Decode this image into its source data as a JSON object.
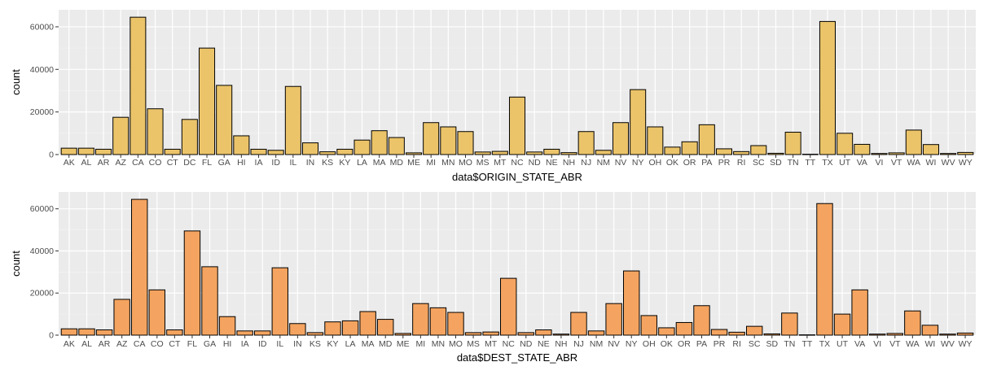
{
  "chart_data": [
    {
      "type": "bar",
      "xlabel": "data$ORIGIN_STATE_ABR",
      "ylabel": "count",
      "ylim": [
        0,
        68000
      ],
      "yticks": [
        0,
        20000,
        40000,
        60000
      ],
      "grid": true,
      "fill_color": "#EBC46A",
      "categories": [
        "AK",
        "AL",
        "AR",
        "AZ",
        "CA",
        "CO",
        "CT",
        "DC",
        "FL",
        "GA",
        "HI",
        "IA",
        "ID",
        "IL",
        "IN",
        "KS",
        "KY",
        "LA",
        "MA",
        "MD",
        "ME",
        "MI",
        "MN",
        "MO",
        "MS",
        "MT",
        "NC",
        "ND",
        "NE",
        "NH",
        "NJ",
        "NM",
        "NV",
        "NY",
        "OH",
        "OK",
        "OR",
        "PA",
        "PR",
        "RI",
        "SC",
        "SD",
        "TN",
        "TT",
        "TX",
        "UT",
        "VA",
        "VI",
        "VT",
        "WA",
        "WI",
        "WV",
        "WY"
      ],
      "values": [
        3000,
        3000,
        2500,
        17500,
        64500,
        21500,
        2500,
        16500,
        50000,
        32500,
        8800,
        2500,
        2000,
        32000,
        5500,
        1300,
        2500,
        6800,
        11200,
        8000,
        800,
        15000,
        13000,
        10800,
        1200,
        1500,
        27000,
        1200,
        2500,
        900,
        10800,
        2000,
        15000,
        30500,
        13000,
        3500,
        6000,
        14000,
        2700,
        1400,
        4200,
        600,
        10500,
        150,
        62500,
        10000,
        4800,
        500,
        800,
        11500,
        4700,
        500,
        1000
      ]
    },
    {
      "type": "bar",
      "xlabel": "data$DEST_STATE_ABR",
      "ylabel": "count",
      "ylim": [
        0,
        68000
      ],
      "yticks": [
        0,
        20000,
        40000,
        60000
      ],
      "grid": true,
      "fill_color": "#F4A460",
      "categories": [
        "AK",
        "AL",
        "AR",
        "AZ",
        "CA",
        "CO",
        "CT",
        "FL",
        "GA",
        "HI",
        "IA",
        "ID",
        "IL",
        "IN",
        "KS",
        "KY",
        "LA",
        "MA",
        "MD",
        "ME",
        "MI",
        "MN",
        "MO",
        "MS",
        "MT",
        "NC",
        "ND",
        "NE",
        "NH",
        "NJ",
        "NM",
        "NV",
        "NY",
        "OH",
        "OK",
        "OR",
        "PA",
        "PR",
        "RI",
        "SC",
        "SD",
        "TN",
        "TT",
        "TX",
        "UT",
        "VA",
        "VI",
        "VT",
        "WA",
        "WI",
        "WV",
        "WY"
      ],
      "values": [
        3000,
        3000,
        2500,
        17000,
        64500,
        21500,
        2500,
        49500,
        32500,
        8800,
        2000,
        2000,
        32000,
        5500,
        1200,
        6300,
        6800,
        11200,
        7500,
        800,
        15000,
        13000,
        10800,
        1200,
        1500,
        27000,
        1200,
        2500,
        500,
        10800,
        2000,
        15000,
        30500,
        9300,
        3500,
        6000,
        14000,
        2700,
        1400,
        4200,
        600,
        10500,
        150,
        62500,
        10000,
        21500,
        500,
        800,
        11500,
        4700,
        500,
        1000
      ]
    }
  ]
}
